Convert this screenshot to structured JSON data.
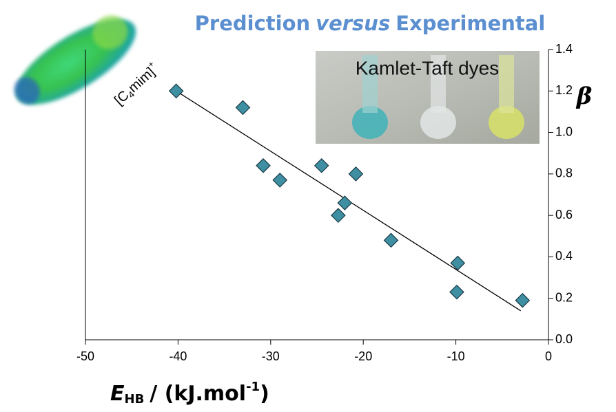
{
  "chart_data": {
    "type": "scatter",
    "title": {
      "before": "Prediction",
      "emphasis": "versus",
      "after": "Experimental"
    },
    "x_label": {
      "symbol": "E",
      "subscript": "HB",
      "unit": "/ (kJ.mol",
      "exponent": "-1",
      "close": ")"
    },
    "y_label": "β",
    "annotation": {
      "open": "[C",
      "subscript": "4",
      "rest": "mim]",
      "charge": "+"
    },
    "inset_label": "Kamlet-Taft dyes",
    "x": [
      -40.2,
      -33.0,
      -30.8,
      -29.0,
      -24.5,
      -20.8,
      -22.0,
      -22.7,
      -17.0,
      -9.8,
      -9.9,
      -2.8
    ],
    "values": [
      1.2,
      1.12,
      0.84,
      0.77,
      0.84,
      0.8,
      0.66,
      0.6,
      0.48,
      0.37,
      0.23,
      0.19
    ],
    "color": "#3f8fa3",
    "trendline": {
      "x": [
        -40.2,
        -3.0
      ],
      "y": [
        1.2,
        0.14
      ]
    },
    "xlim": [
      -50,
      0
    ],
    "xticks": [
      -50,
      -40,
      -30,
      -20,
      -10,
      0
    ],
    "ylim": [
      0,
      1.4
    ],
    "yticks": [
      {
        "value": 0,
        "label": "0.0"
      },
      {
        "value": 0.2,
        "label": "0.2"
      },
      {
        "value": 0.4,
        "label": "0.4"
      },
      {
        "value": 0.6,
        "label": "0.6"
      },
      {
        "value": 0.8,
        "label": "0.8"
      },
      {
        "value": 1.0,
        "label": "1.0"
      },
      {
        "value": 1.2,
        "label": "1.2"
      },
      {
        "value": 1.4,
        "label": "1.4"
      }
    ]
  }
}
